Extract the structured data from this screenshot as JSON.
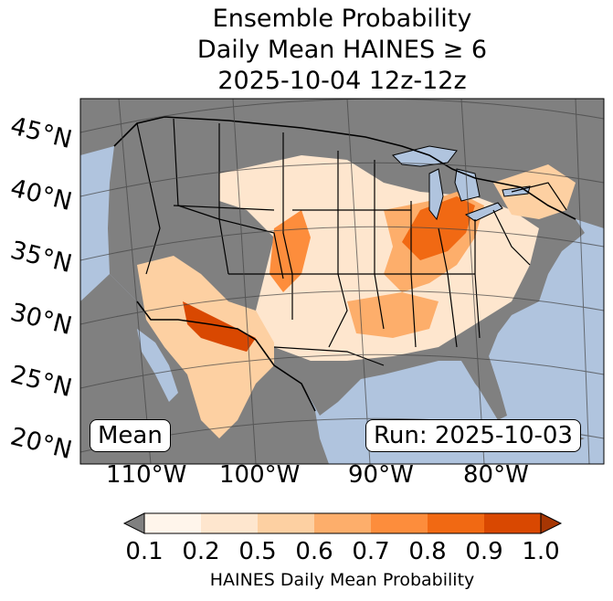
{
  "title": {
    "line1": "Ensemble Probability",
    "line2": "Daily Mean HAINES ≥ 6",
    "line3": "2025-10-04 12z-12z"
  },
  "latitude_labels": [
    "45°N",
    "40°N",
    "35°N",
    "30°N",
    "25°N",
    "20°N"
  ],
  "longitude_labels": [
    "110°W",
    "100°W",
    "90°W",
    "80°W"
  ],
  "mean_label": "Mean",
  "run_label": "Run: 2025-10-03",
  "colorbar": {
    "ticks": [
      "0.1",
      "0.2",
      "0.5",
      "0.6",
      "0.7",
      "0.8",
      "0.9",
      "1.0"
    ],
    "colors": [
      "#fff5eb",
      "#fee6ce",
      "#fdd0a2",
      "#fdae6b",
      "#fd8d3c",
      "#f16913",
      "#d94801",
      "#a63603"
    ],
    "under_color": "#808080",
    "title": "HAINES Daily Mean Probability"
  },
  "colors": {
    "water": "#b0c4de",
    "no_data": "#808080"
  }
}
